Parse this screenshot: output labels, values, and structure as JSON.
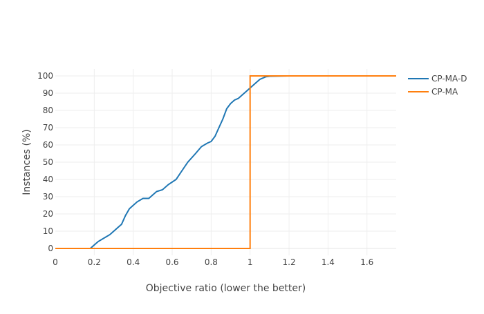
{
  "chart_data": {
    "type": "line",
    "title": "",
    "xlabel": "Objective ratio (lower the better)",
    "ylabel": "Instances (%)",
    "xlim": [
      0,
      1.75
    ],
    "ylim": [
      -4,
      104
    ],
    "x_ticks": [
      0,
      0.2,
      0.4,
      0.6,
      0.8,
      1,
      1.2,
      1.4,
      1.6
    ],
    "x_tick_labels": [
      "0",
      "0.2",
      "0.4",
      "0.6",
      "0.8",
      "1",
      "1.2",
      "1.4",
      "1.6"
    ],
    "y_ticks": [
      0,
      10,
      20,
      30,
      40,
      50,
      60,
      70,
      80,
      90,
      100
    ],
    "y_tick_labels": [
      "0",
      "10",
      "20",
      "30",
      "40",
      "50",
      "60",
      "70",
      "80",
      "90",
      "100"
    ],
    "grid": true,
    "legend_position": "top-right",
    "series": [
      {
        "name": "CP-MA-D",
        "color": "#1f77b4",
        "x": [
          0,
          0.18,
          0.2,
          0.22,
          0.25,
          0.28,
          0.3,
          0.32,
          0.34,
          0.36,
          0.38,
          0.4,
          0.42,
          0.45,
          0.48,
          0.52,
          0.55,
          0.58,
          0.62,
          0.65,
          0.68,
          0.72,
          0.75,
          0.78,
          0.8,
          0.82,
          0.84,
          0.86,
          0.88,
          0.9,
          0.92,
          0.94,
          0.96,
          0.98,
          1.0,
          1.02,
          1.05,
          1.08,
          1.1,
          1.2,
          1.75
        ],
        "y": [
          0,
          0,
          2,
          4,
          6,
          8,
          10,
          12,
          14,
          19,
          23,
          25,
          27,
          29,
          29,
          33,
          34,
          37,
          40,
          45,
          50,
          55,
          59,
          61,
          62,
          65,
          70,
          75,
          81,
          84,
          86,
          87,
          89,
          91,
          93,
          95,
          98,
          99.5,
          99.8,
          100,
          100
        ]
      },
      {
        "name": "CP-MA",
        "color": "#ff7f0e",
        "x": [
          0,
          1.0,
          1.0,
          1.75
        ],
        "y": [
          0,
          0,
          100,
          100
        ]
      }
    ]
  }
}
